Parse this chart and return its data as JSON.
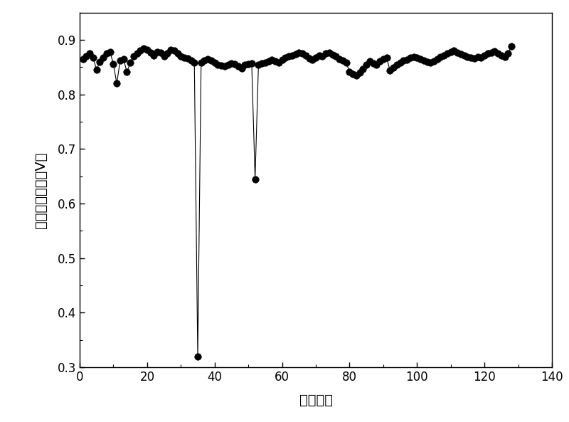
{
  "title": "",
  "xlabel": "电堆节数",
  "ylabel": "电堆单节电压（V）",
  "xlim": [
    0,
    140
  ],
  "ylim": [
    0.3,
    0.95
  ],
  "xticks": [
    0,
    20,
    40,
    60,
    80,
    100,
    120,
    140
  ],
  "yticks": [
    0.3,
    0.4,
    0.5,
    0.6,
    0.7,
    0.8,
    0.9
  ],
  "line_color": "#000000",
  "marker_color": "#000000",
  "marker_size": 7,
  "line_width": 0.8,
  "x": [
    1,
    2,
    3,
    4,
    5,
    6,
    7,
    8,
    9,
    10,
    11,
    12,
    13,
    14,
    15,
    16,
    17,
    18,
    19,
    20,
    21,
    22,
    23,
    24,
    25,
    26,
    27,
    28,
    29,
    30,
    31,
    32,
    33,
    34,
    35,
    36,
    37,
    38,
    39,
    40,
    41,
    42,
    43,
    44,
    45,
    46,
    47,
    48,
    49,
    50,
    51,
    52,
    53,
    54,
    55,
    56,
    57,
    58,
    59,
    60,
    61,
    62,
    63,
    64,
    65,
    66,
    67,
    68,
    69,
    70,
    71,
    72,
    73,
    74,
    75,
    76,
    77,
    78,
    79,
    80,
    81,
    82,
    83,
    84,
    85,
    86,
    87,
    88,
    89,
    90,
    91,
    92,
    93,
    94,
    95,
    96,
    97,
    98,
    99,
    100,
    101,
    102,
    103,
    104,
    105,
    106,
    107,
    108,
    109,
    110,
    111,
    112,
    113,
    114,
    115,
    116,
    117,
    118,
    119,
    120,
    121,
    122,
    123,
    124,
    125,
    126,
    127,
    128
  ],
  "y": [
    0.865,
    0.87,
    0.875,
    0.868,
    0.845,
    0.86,
    0.868,
    0.875,
    0.878,
    0.856,
    0.82,
    0.862,
    0.865,
    0.841,
    0.858,
    0.87,
    0.875,
    0.88,
    0.885,
    0.882,
    0.877,
    0.872,
    0.878,
    0.876,
    0.87,
    0.875,
    0.882,
    0.88,
    0.875,
    0.87,
    0.868,
    0.866,
    0.862,
    0.858,
    0.32,
    0.858,
    0.862,
    0.865,
    0.862,
    0.858,
    0.855,
    0.853,
    0.852,
    0.854,
    0.857,
    0.856,
    0.852,
    0.848,
    0.854,
    0.856,
    0.857,
    0.645,
    0.854,
    0.857,
    0.859,
    0.861,
    0.863,
    0.861,
    0.859,
    0.864,
    0.867,
    0.87,
    0.872,
    0.874,
    0.877,
    0.875,
    0.871,
    0.866,
    0.863,
    0.868,
    0.871,
    0.87,
    0.875,
    0.877,
    0.873,
    0.87,
    0.865,
    0.862,
    0.859,
    0.841,
    0.837,
    0.835,
    0.84,
    0.847,
    0.855,
    0.861,
    0.857,
    0.855,
    0.861,
    0.865,
    0.867,
    0.844,
    0.849,
    0.854,
    0.859,
    0.862,
    0.864,
    0.867,
    0.869,
    0.868,
    0.865,
    0.862,
    0.86,
    0.858,
    0.861,
    0.865,
    0.869,
    0.872,
    0.875,
    0.878,
    0.881,
    0.877,
    0.874,
    0.871,
    0.869,
    0.867,
    0.866,
    0.869,
    0.867,
    0.871,
    0.875,
    0.877,
    0.879,
    0.875,
    0.871,
    0.869,
    0.875,
    0.889
  ]
}
